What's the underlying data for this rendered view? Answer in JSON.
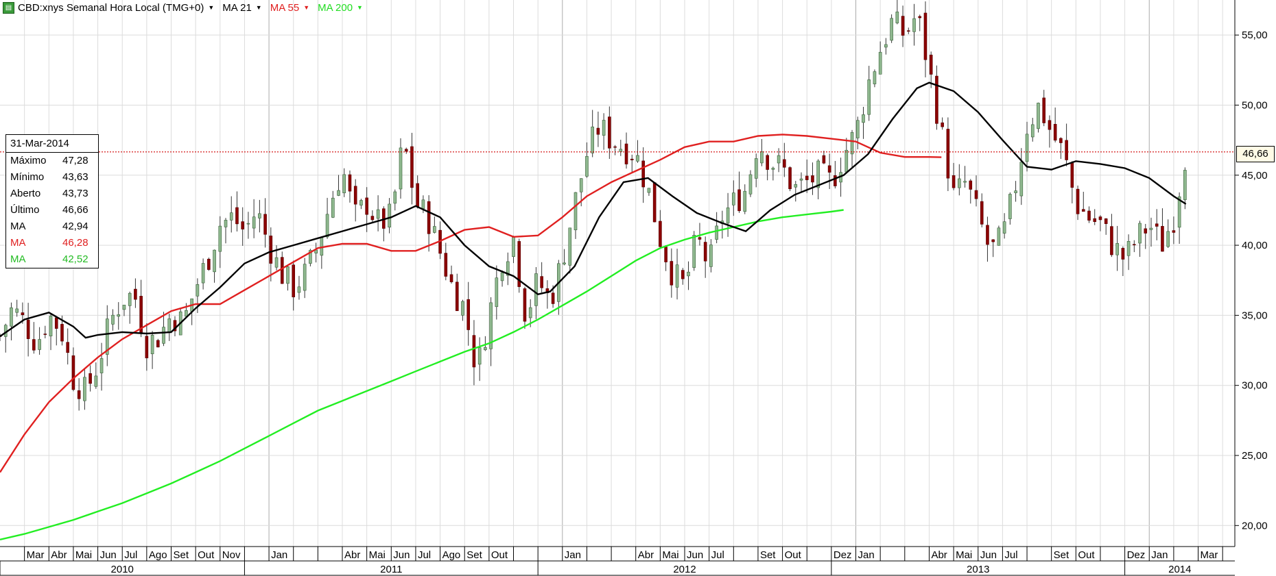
{
  "header": {
    "symbol": "CBD:xnys Semanal Hora Local (TMG+0)",
    "ma21_label": "MA 21",
    "ma55_label": "MA 55",
    "ma200_label": "MA 200",
    "colors": {
      "ma21": "#000000",
      "ma55": "#e02020",
      "ma200": "#22ee22"
    }
  },
  "info_box": {
    "date": "31-Mar-2014",
    "rows": [
      {
        "label": "Máximo",
        "value": "47,28",
        "color": "#000000"
      },
      {
        "label": "Mínimo",
        "value": "43,63",
        "color": "#000000"
      },
      {
        "label": "Aberto",
        "value": "43,73",
        "color": "#000000"
      },
      {
        "label": "Último",
        "value": "46,66",
        "color": "#000000"
      },
      {
        "label": "MA",
        "value": "42,94",
        "color": "#000000"
      },
      {
        "label": "MA",
        "value": "46,28",
        "color": "#e02020"
      },
      {
        "label": "MA",
        "value": "42,52",
        "color": "#22bb22"
      }
    ]
  },
  "last_price_label": "46,66",
  "chart_data": {
    "type": "candlestick",
    "y_axis": {
      "min": 18.5,
      "max": 57.5,
      "side": "right",
      "ticks": [
        {
          "value": 20,
          "label": "20,00"
        },
        {
          "value": 25,
          "label": "25,00"
        },
        {
          "value": 30,
          "label": "30,00"
        },
        {
          "value": 35,
          "label": "35,00"
        },
        {
          "value": 40,
          "label": "40,00"
        },
        {
          "value": 45,
          "label": "45,00"
        },
        {
          "value": 50,
          "label": "50,00"
        },
        {
          "value": 55,
          "label": "55,00"
        }
      ]
    },
    "last_price": 46.66,
    "x_axis": {
      "start_year": 2010,
      "start_month": 2.0,
      "months_span": 50.5,
      "months": [
        {
          "label": "Mar",
          "m": 3
        },
        {
          "label": "Abr",
          "m": 4
        },
        {
          "label": "Mai",
          "m": 5
        },
        {
          "label": "Jun",
          "m": 6
        },
        {
          "label": "Jul",
          "m": 7
        },
        {
          "label": "Ago",
          "m": 8
        },
        {
          "label": "Set",
          "m": 9
        },
        {
          "label": "Out",
          "m": 10
        },
        {
          "label": "Nov",
          "m": 11
        },
        {
          "label": "Jan",
          "m": 13
        },
        {
          "label": "Abr",
          "m": 16
        },
        {
          "label": "Mai",
          "m": 17
        },
        {
          "label": "Jun",
          "m": 18
        },
        {
          "label": "Jul",
          "m": 19
        },
        {
          "label": "Ago",
          "m": 20
        },
        {
          "label": "Set",
          "m": 21
        },
        {
          "label": "Out",
          "m": 22
        },
        {
          "label": "Jan",
          "m": 25
        },
        {
          "label": "Abr",
          "m": 28
        },
        {
          "label": "Mai",
          "m": 29
        },
        {
          "label": "Jun",
          "m": 30
        },
        {
          "label": "Jul",
          "m": 31
        },
        {
          "label": "Set",
          "m": 33
        },
        {
          "label": "Out",
          "m": 34
        },
        {
          "label": "Dez",
          "m": 36
        },
        {
          "label": "Jan",
          "m": 37
        },
        {
          "label": "Abr",
          "m": 40
        },
        {
          "label": "Mai",
          "m": 41
        },
        {
          "label": "Jun",
          "m": 42
        },
        {
          "label": "Jul",
          "m": 43
        },
        {
          "label": "Set",
          "m": 45
        },
        {
          "label": "Out",
          "m": 46
        },
        {
          "label": "Dez",
          "m": 48
        },
        {
          "label": "Jan",
          "m": 49
        },
        {
          "label": "Mar",
          "m": 51
        }
      ],
      "years": [
        {
          "label": "2010",
          "from": 2,
          "to": 12
        },
        {
          "label": "2011",
          "from": 12,
          "to": 24
        },
        {
          "label": "2012",
          "from": 24,
          "to": 36
        },
        {
          "label": "2013",
          "from": 36,
          "to": 48
        },
        {
          "label": "2014",
          "from": 48,
          "to": 52.5
        }
      ]
    },
    "close_path": [
      [
        2.0,
        33.5
      ],
      [
        2.5,
        35.5
      ],
      [
        3.0,
        34.5
      ],
      [
        3.5,
        33.0
      ],
      [
        4.0,
        35.0
      ],
      [
        4.5,
        34.0
      ],
      [
        5.0,
        30.5
      ],
      [
        5.5,
        29.5
      ],
      [
        6.0,
        31.5
      ],
      [
        6.5,
        34.5
      ],
      [
        7.0,
        36.2
      ],
      [
        7.5,
        36.5
      ],
      [
        8.0,
        33.0
      ],
      [
        8.5,
        33.5
      ],
      [
        9.0,
        35.0
      ],
      [
        9.5,
        34.5
      ],
      [
        10.0,
        37.0
      ],
      [
        10.5,
        39.0
      ],
      [
        11.0,
        41.5
      ],
      [
        11.5,
        42.0
      ],
      [
        12.0,
        41.0
      ],
      [
        12.5,
        42.5
      ],
      [
        13.0,
        40.0
      ],
      [
        13.5,
        38.0
      ],
      [
        14.0,
        37.0
      ],
      [
        14.5,
        38.0
      ],
      [
        15.0,
        40.0
      ],
      [
        15.5,
        43.0
      ],
      [
        16.0,
        45.5
      ],
      [
        16.5,
        42.0
      ],
      [
        17.0,
        43.0
      ],
      [
        17.5,
        41.5
      ],
      [
        18.0,
        42.0
      ],
      [
        18.5,
        47.5
      ],
      [
        19.0,
        43.0
      ],
      [
        19.5,
        42.0
      ],
      [
        20.0,
        39.5
      ],
      [
        20.5,
        37.0
      ],
      [
        21.0,
        35.5
      ],
      [
        21.5,
        31.0
      ],
      [
        22.0,
        35.0
      ],
      [
        22.5,
        39.0
      ],
      [
        23.0,
        40.5
      ],
      [
        23.5,
        35.0
      ],
      [
        24.0,
        37.5
      ],
      [
        24.5,
        36.0
      ],
      [
        25.0,
        39.0
      ],
      [
        25.5,
        43.0
      ],
      [
        26.0,
        46.5
      ],
      [
        26.5,
        48.5
      ],
      [
        27.0,
        47.5
      ],
      [
        27.5,
        47.0
      ],
      [
        28.0,
        46.5
      ],
      [
        28.5,
        44.0
      ],
      [
        29.0,
        40.5
      ],
      [
        29.5,
        38.0
      ],
      [
        30.0,
        37.0
      ],
      [
        30.5,
        40.5
      ],
      [
        31.0,
        38.5
      ],
      [
        31.5,
        42.0
      ],
      [
        32.0,
        43.0
      ],
      [
        32.5,
        44.0
      ],
      [
        33.0,
        47.5
      ],
      [
        33.5,
        46.0
      ],
      [
        34.0,
        45.5
      ],
      [
        34.5,
        44.0
      ],
      [
        35.0,
        44.5
      ],
      [
        35.5,
        45.0
      ],
      [
        36.0,
        44.5
      ],
      [
        36.5,
        46.5
      ],
      [
        37.0,
        48.0
      ],
      [
        37.5,
        51.5
      ],
      [
        38.0,
        54.0
      ],
      [
        38.5,
        56.0
      ],
      [
        39.0,
        55.0
      ],
      [
        39.5,
        56.5
      ],
      [
        40.0,
        52.5
      ],
      [
        40.5,
        48.0
      ],
      [
        41.0,
        43.5
      ],
      [
        41.5,
        44.5
      ],
      [
        42.0,
        42.0
      ],
      [
        42.5,
        39.5
      ],
      [
        43.0,
        40.5
      ],
      [
        43.5,
        44.0
      ],
      [
        44.0,
        48.5
      ],
      [
        44.5,
        50.0
      ],
      [
        45.0,
        48.0
      ],
      [
        45.5,
        46.5
      ],
      [
        46.0,
        43.0
      ],
      [
        46.5,
        42.0
      ],
      [
        47.0,
        41.5
      ],
      [
        47.5,
        40.0
      ],
      [
        48.0,
        39.0
      ],
      [
        48.5,
        40.5
      ],
      [
        49.0,
        41.5
      ],
      [
        49.5,
        40.0
      ],
      [
        50.0,
        42.0
      ],
      [
        50.5,
        46.66
      ]
    ],
    "ma21": [
      [
        2.0,
        33.5
      ],
      [
        3.0,
        34.7
      ],
      [
        4.0,
        35.2
      ],
      [
        5.0,
        34.2
      ],
      [
        5.5,
        33.4
      ],
      [
        6.0,
        33.6
      ],
      [
        7.0,
        33.8
      ],
      [
        8.0,
        33.7
      ],
      [
        9.0,
        33.8
      ],
      [
        10.0,
        35.5
      ],
      [
        11.0,
        37.0
      ],
      [
        12.0,
        38.7
      ],
      [
        13.0,
        39.5
      ],
      [
        14.0,
        40.0
      ],
      [
        15.0,
        40.5
      ],
      [
        16.0,
        41.0
      ],
      [
        17.0,
        41.5
      ],
      [
        18.0,
        42.0
      ],
      [
        19.0,
        42.8
      ],
      [
        20.0,
        42.0
      ],
      [
        21.0,
        40.0
      ],
      [
        22.0,
        38.5
      ],
      [
        23.0,
        37.8
      ],
      [
        24.0,
        36.5
      ],
      [
        24.5,
        36.7
      ],
      [
        25.5,
        38.5
      ],
      [
        26.5,
        42.0
      ],
      [
        27.5,
        44.5
      ],
      [
        28.5,
        44.8
      ],
      [
        29.5,
        43.5
      ],
      [
        30.5,
        42.3
      ],
      [
        31.5,
        41.6
      ],
      [
        32.5,
        41.0
      ],
      [
        33.5,
        42.5
      ],
      [
        34.5,
        43.6
      ],
      [
        35.5,
        44.3
      ],
      [
        36.5,
        45.0
      ],
      [
        37.5,
        46.5
      ],
      [
        38.5,
        49.0
      ],
      [
        39.5,
        51.2
      ],
      [
        40.0,
        51.6
      ],
      [
        41.0,
        51.0
      ],
      [
        42.0,
        49.5
      ],
      [
        43.0,
        47.5
      ],
      [
        44.0,
        45.6
      ],
      [
        45.0,
        45.4
      ],
      [
        46.0,
        46.0
      ],
      [
        47.0,
        45.8
      ],
      [
        48.0,
        45.5
      ],
      [
        49.0,
        44.8
      ],
      [
        50.0,
        43.5
      ],
      [
        50.5,
        42.94
      ]
    ],
    "ma55": [
      [
        2.0,
        23.8
      ],
      [
        3.0,
        26.5
      ],
      [
        4.0,
        28.8
      ],
      [
        5.0,
        30.5
      ],
      [
        6.0,
        32.0
      ],
      [
        7.0,
        33.3
      ],
      [
        8.0,
        34.3
      ],
      [
        9.0,
        35.3
      ],
      [
        10.0,
        35.8
      ],
      [
        11.0,
        35.8
      ],
      [
        12.0,
        36.8
      ],
      [
        13.0,
        37.8
      ],
      [
        14.0,
        38.8
      ],
      [
        15.0,
        39.8
      ],
      [
        16.0,
        40.1
      ],
      [
        17.0,
        40.1
      ],
      [
        18.0,
        39.6
      ],
      [
        19.0,
        39.6
      ],
      [
        20.0,
        40.3
      ],
      [
        21.0,
        41.1
      ],
      [
        22.0,
        41.3
      ],
      [
        23.0,
        40.6
      ],
      [
        24.0,
        40.7
      ],
      [
        25.0,
        42.0
      ],
      [
        26.0,
        43.5
      ],
      [
        27.0,
        44.5
      ],
      [
        28.0,
        45.3
      ],
      [
        29.0,
        46.1
      ],
      [
        30.0,
        47.0
      ],
      [
        31.0,
        47.4
      ],
      [
        32.0,
        47.4
      ],
      [
        33.0,
        47.8
      ],
      [
        34.0,
        47.9
      ],
      [
        35.0,
        47.8
      ],
      [
        36.0,
        47.6
      ],
      [
        37.0,
        47.4
      ],
      [
        38.0,
        46.6
      ],
      [
        39.0,
        46.3
      ],
      [
        40.0,
        46.3
      ],
      [
        40.5,
        46.28
      ]
    ],
    "ma200": [
      [
        2.0,
        19.0
      ],
      [
        3.0,
        19.4
      ],
      [
        4.0,
        19.9
      ],
      [
        5.0,
        20.4
      ],
      [
        6.0,
        21.0
      ],
      [
        7.0,
        21.6
      ],
      [
        8.0,
        22.3
      ],
      [
        9.0,
        23.0
      ],
      [
        10.0,
        23.8
      ],
      [
        11.0,
        24.6
      ],
      [
        12.0,
        25.5
      ],
      [
        13.0,
        26.4
      ],
      [
        14.0,
        27.3
      ],
      [
        15.0,
        28.2
      ],
      [
        16.0,
        28.9
      ],
      [
        17.0,
        29.6
      ],
      [
        18.0,
        30.3
      ],
      [
        19.0,
        31.0
      ],
      [
        20.0,
        31.7
      ],
      [
        21.0,
        32.4
      ],
      [
        22.0,
        33.0
      ],
      [
        23.0,
        33.8
      ],
      [
        24.0,
        34.7
      ],
      [
        25.0,
        35.7
      ],
      [
        26.0,
        36.7
      ],
      [
        27.0,
        37.8
      ],
      [
        28.0,
        38.9
      ],
      [
        29.0,
        39.8
      ],
      [
        30.0,
        40.4
      ],
      [
        31.0,
        40.9
      ],
      [
        32.0,
        41.3
      ],
      [
        33.0,
        41.7
      ],
      [
        34.0,
        42.0
      ],
      [
        35.0,
        42.2
      ],
      [
        36.0,
        42.4
      ],
      [
        36.5,
        42.52
      ]
    ]
  }
}
